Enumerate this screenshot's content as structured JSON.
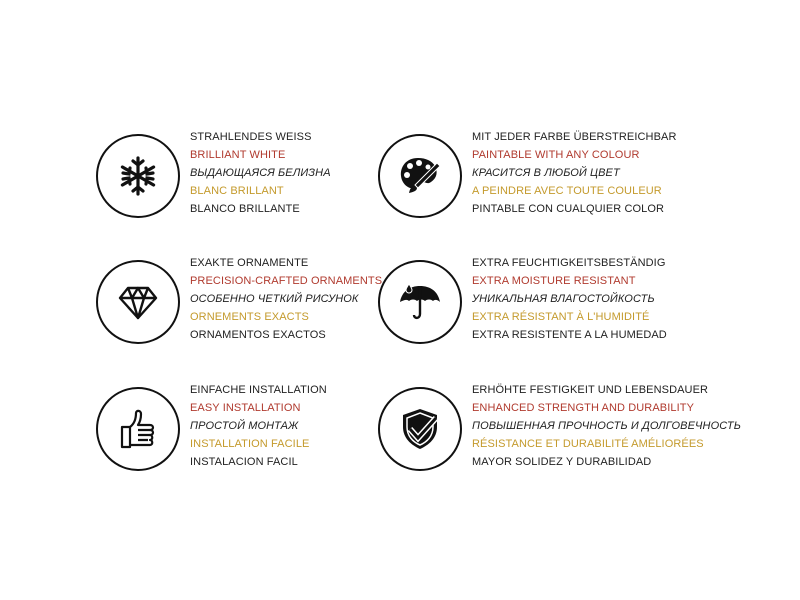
{
  "colors": {
    "english": "#b03a2e",
    "french": "#c49a2c",
    "text": "#222222"
  },
  "features": [
    {
      "icon": "snowflake-icon",
      "lines": [
        "STRAHLENDES WEISS",
        "BRILLIANT WHITE",
        "ВЫДАЮЩАЯСЯ БЕЛИЗНА",
        "BLANC BRILLANT",
        "BLANCO BRILLANTE"
      ]
    },
    {
      "icon": "palette-brush-icon",
      "lines": [
        "MIT JEDER FARBE ÜBERSTREICHBAR",
        "PAINTABLE WITH ANY COLOUR",
        "КРАСИТСЯ В ЛЮБОЙ ЦВЕТ",
        "A PEINDRE AVEC TOUTE COULEUR",
        "PINTABLE CON CUALQUIER COLOR"
      ]
    },
    {
      "icon": "diamond-icon",
      "lines": [
        "EXAKTE ORNAMENTE",
        "PRECISION-CRAFTED ORNAMENTS",
        "ОСОБЕННО ЧЕТКИЙ РИСУНОК",
        "ORNEMENTS EXACTS",
        "ORNAMENTOS EXACTOS"
      ]
    },
    {
      "icon": "umbrella-icon",
      "lines": [
        "EXTRA FEUCHTIGKEITSBESTÄNDIG",
        "EXTRA MOISTURE RESISTANT",
        "УНИКАЛЬНАЯ ВЛАГОСТОЙКОСТЬ",
        "EXTRA RÉSISTANT À L'HUMIDITÉ",
        "EXTRA RESISTENTE A LA HUMEDAD"
      ]
    },
    {
      "icon": "thumbs-up-icon",
      "lines": [
        "EINFACHE INSTALLATION",
        "EASY INSTALLATION",
        "ПРОСТОЙ МОНТАЖ",
        "INSTALLATION FACILE",
        "INSTALACION FACIL"
      ]
    },
    {
      "icon": "shield-check-icon",
      "lines": [
        "ERHÖHTE FESTIGKEIT UND LEBENSDAUER",
        "ENHANCED STRENGTH AND DURABILITY",
        "ПОВЫШЕННАЯ ПРОЧНОСТЬ И ДОЛГОВЕЧНОСТЬ",
        "RÉSISTANCE ET DURABILITÉ AMÉLIORÉES",
        "MAYOR SOLIDEZ Y DURABILIDAD"
      ]
    }
  ]
}
